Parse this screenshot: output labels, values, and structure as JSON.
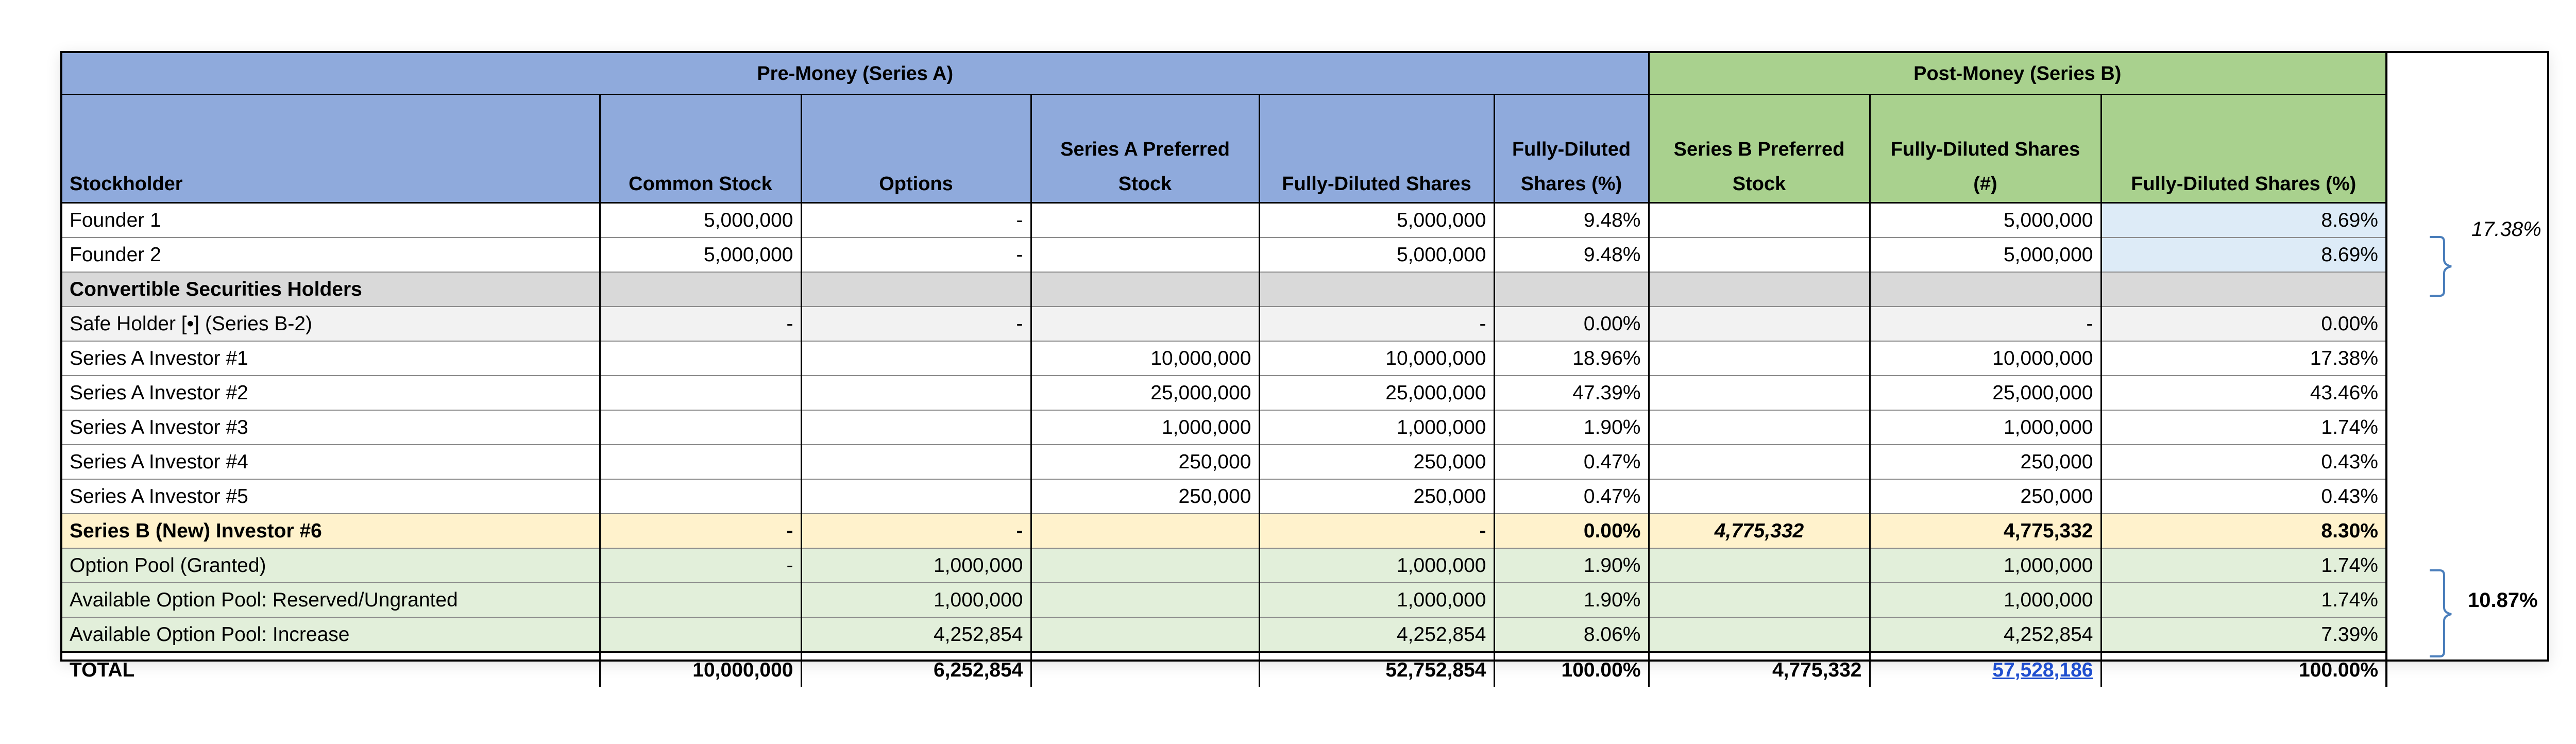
{
  "groups": {
    "pre": "Pre-Money (Series A)",
    "post": "Post-Money (Series B)"
  },
  "headers": {
    "stockholder": "Stockholder",
    "common": "Common Stock",
    "options": "Options",
    "series_a": "Series A Preferred Stock",
    "fd_shares": "Fully-Diluted Shares",
    "fd_pct": "Fully-Diluted Shares (%)",
    "series_b": "Series B Preferred Stock",
    "post_fd_shares": "Fully-Diluted Shares (#)",
    "post_fd_pct": "Fully-Diluted Shares (%)"
  },
  "rows": [
    {
      "name": "Founder 1",
      "common": "5,000,000",
      "options": "-",
      "series_a": "",
      "fd": "5,000,000",
      "fd_pct": "9.48%",
      "series_b": "",
      "post_fd": "5,000,000",
      "post_pct": "8.69%"
    },
    {
      "name": "Founder 2",
      "common": "5,000,000",
      "options": "-",
      "series_a": "",
      "fd": "5,000,000",
      "fd_pct": "9.48%",
      "series_b": "",
      "post_fd": "5,000,000",
      "post_pct": "8.69%"
    },
    {
      "name": "Convertible Securities Holders",
      "common": "",
      "options": "",
      "series_a": "",
      "fd": "",
      "fd_pct": "",
      "series_b": "",
      "post_fd": "",
      "post_pct": ""
    },
    {
      "name": "Safe Holder [•] (Series B-2)",
      "common": "-",
      "options": "-",
      "series_a": "",
      "fd": "-",
      "fd_pct": "0.00%",
      "series_b": "",
      "post_fd": "-",
      "post_pct": "0.00%"
    },
    {
      "name": "Series A Investor #1",
      "common": "",
      "options": "",
      "series_a": "10,000,000",
      "fd": "10,000,000",
      "fd_pct": "18.96%",
      "series_b": "",
      "post_fd": "10,000,000",
      "post_pct": "17.38%"
    },
    {
      "name": "Series A Investor #2",
      "common": "",
      "options": "",
      "series_a": "25,000,000",
      "fd": "25,000,000",
      "fd_pct": "47.39%",
      "series_b": "",
      "post_fd": "25,000,000",
      "post_pct": "43.46%"
    },
    {
      "name": "Series A Investor #3",
      "common": "",
      "options": "",
      "series_a": "1,000,000",
      "fd": "1,000,000",
      "fd_pct": "1.90%",
      "series_b": "",
      "post_fd": "1,000,000",
      "post_pct": "1.74%"
    },
    {
      "name": "Series A Investor #4",
      "common": "",
      "options": "",
      "series_a": "250,000",
      "fd": "250,000",
      "fd_pct": "0.47%",
      "series_b": "",
      "post_fd": "250,000",
      "post_pct": "0.43%"
    },
    {
      "name": "Series A Investor #5",
      "common": "",
      "options": "",
      "series_a": "250,000",
      "fd": "250,000",
      "fd_pct": "0.47%",
      "series_b": "",
      "post_fd": "250,000",
      "post_pct": "0.43%"
    },
    {
      "name": "Series B (New) Investor #6",
      "common": "-",
      "options": "-",
      "series_a": "",
      "fd": "-",
      "fd_pct": "0.00%",
      "series_b": "4,775,332",
      "post_fd": "4,775,332",
      "post_pct": "8.30%"
    },
    {
      "name": "Option Pool (Granted)",
      "common": "-",
      "options": "1,000,000",
      "series_a": "",
      "fd": "1,000,000",
      "fd_pct": "1.90%",
      "series_b": "",
      "post_fd": "1,000,000",
      "post_pct": "1.74%"
    },
    {
      "name": "Available Option Pool: Reserved/Ungranted",
      "common": "",
      "options": "1,000,000",
      "series_a": "",
      "fd": "1,000,000",
      "fd_pct": "1.90%",
      "series_b": "",
      "post_fd": "1,000,000",
      "post_pct": "1.74%"
    },
    {
      "name": "Available Option Pool: Increase",
      "common": "",
      "options": "4,252,854",
      "series_a": "",
      "fd": "4,252,854",
      "fd_pct": "8.06%",
      "series_b": "",
      "post_fd": "4,252,854",
      "post_pct": "7.39%"
    }
  ],
  "total": {
    "name": "TOTAL",
    "common": "10,000,000",
    "options": "6,252,854",
    "series_a": "",
    "fd": "52,752,854",
    "fd_pct": "100.00%",
    "series_b": "4,775,332",
    "post_fd": "57,528,186",
    "post_pct": "100.00%"
  },
  "annotations": {
    "founders_pct": "17.38%",
    "option_pool_pct": "10.87%"
  },
  "colors": {
    "pre_header": "#8faadc",
    "post_header": "#a9d18e",
    "section_gray": "#d9d9d9",
    "series_b_row": "#fff2cc",
    "option_rows": "#e2efda",
    "founder_pct_highlight": "#ddebf7",
    "link_blue": "#1f4ecf",
    "brace": "#4a7ebb"
  }
}
